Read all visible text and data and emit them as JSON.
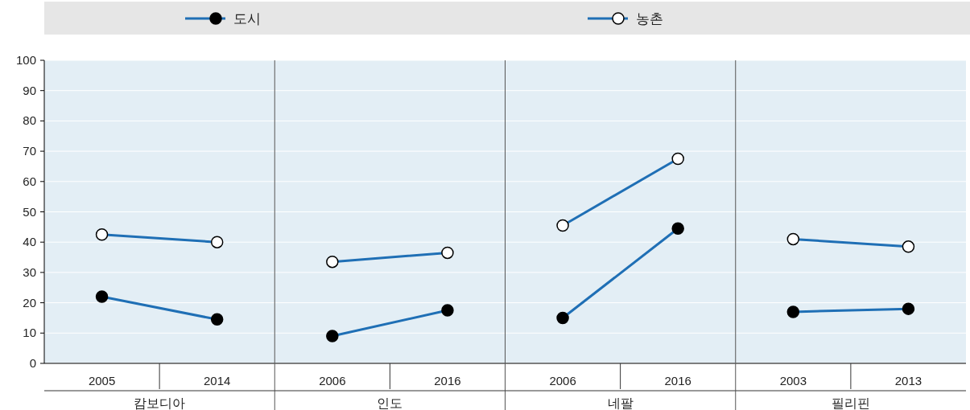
{
  "chart_data": [
    {
      "type": "line",
      "categories": [
        "2005",
        "2014"
      ],
      "xlabel": "캄보디아",
      "ylim": [
        0,
        100
      ],
      "yticks": [
        0,
        10,
        20,
        30,
        40,
        50,
        60,
        70,
        80,
        90,
        100
      ],
      "grid": "y",
      "legend": "top",
      "marker": "circle",
      "series": [
        {
          "name": "도시",
          "color": "#1f6fb5",
          "values": [
            22,
            14.5
          ]
        },
        {
          "name": "농촌",
          "color": "#1f6fb5",
          "values": [
            42.5,
            40
          ]
        }
      ]
    },
    {
      "type": "line",
      "categories": [
        "2006",
        "2016"
      ],
      "xlabel": "인도",
      "ylim": [
        0,
        100
      ],
      "yticks": [
        0,
        10,
        20,
        30,
        40,
        50,
        60,
        70,
        80,
        90,
        100
      ],
      "grid": "y",
      "tick_labels": "x",
      "marker": "circle",
      "series": [
        {
          "color": "#1f6fb5",
          "values": [
            9,
            17.5
          ]
        },
        {
          "color": "#1f6fb5",
          "values": [
            33.5,
            36.5
          ]
        }
      ]
    },
    {
      "type": "line",
      "categories": [
        "2006",
        "2016"
      ],
      "xlabel": "네팔",
      "ylim": [
        0,
        100
      ],
      "yticks": [
        0,
        10,
        20,
        30,
        40,
        50,
        60,
        70,
        80,
        90,
        100
      ],
      "grid": "y",
      "tick_labels": "x",
      "marker": "circle",
      "series": [
        {
          "color": "#1f6fb5",
          "values": [
            15,
            44.5
          ]
        },
        {
          "color": "#1f6fb5",
          "values": [
            45.5,
            67.5
          ]
        }
      ]
    },
    {
      "type": "line",
      "categories": [
        "2003",
        "2013"
      ],
      "xlabel": "필리핀",
      "ylim": [
        0,
        100
      ],
      "yticks": [
        0,
        10,
        20,
        30,
        40,
        50,
        60,
        70,
        80,
        90,
        100
      ],
      "grid": "y",
      "tick_labels": "x",
      "marker": "circle",
      "series": [
        {
          "color": "#1f6fb5",
          "values": [
            17,
            18
          ]
        },
        {
          "color": "#1f6fb5",
          "values": [
            41,
            38.5
          ]
        }
      ]
    }
  ]
}
